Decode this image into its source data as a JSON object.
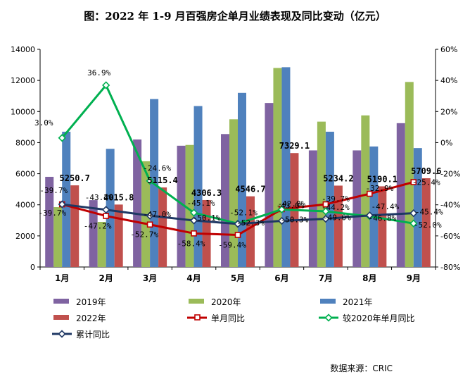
{
  "chart_data": {
    "type": "bar",
    "title": "图：2022 年 1-9 月百强房企单月业绩表现及同比变动（亿元）",
    "categories": [
      "1月",
      "2月",
      "3月",
      "4月",
      "5月",
      "6月",
      "7月",
      "8月",
      "9月"
    ],
    "ylim": [
      0,
      14000
    ],
    "y_ticks": [
      "0",
      "2000",
      "4000",
      "6000",
      "8000",
      "10000",
      "12000",
      "14000"
    ],
    "y2lim": [
      -80,
      60
    ],
    "y2_ticks": [
      "-80%",
      "-60%",
      "-40%",
      "-20%",
      "0%",
      "20%",
      "40%",
      "60%"
    ],
    "bar_series": [
      {
        "name": "2019年",
        "color": "#7f63a1",
        "values": [
          5800,
          4300,
          8200,
          7800,
          8550,
          10550,
          7500,
          7500,
          9250
        ]
      },
      {
        "name": "2020年",
        "color": "#9bbb59",
        "values": [
          3850,
          2900,
          6800,
          7850,
          9500,
          12800,
          9350,
          9750,
          11900
        ]
      },
      {
        "name": "2021年",
        "color": "#4f81bd",
        "values": [
          8700,
          7600,
          10800,
          10350,
          11200,
          12850,
          8700,
          7750,
          7650
        ]
      },
      {
        "name": "2022年",
        "color": "#c0504d",
        "values": [
          5250.7,
          4015.8,
          5115.4,
          4306.3,
          4546.7,
          7329.1,
          5234.2,
          5190.1,
          5709.6
        ],
        "labels": [
          "5250.7",
          "4015.8",
          "5115.4",
          "4306.3",
          "4546.7",
          "7329.1",
          "5234.2",
          "5190.1",
          "5709.6"
        ]
      }
    ],
    "line_series": [
      {
        "name": "单月同比",
        "color": "#c00000",
        "values": [
          -39.7,
          -47.2,
          -52.7,
          -58.4,
          -59.4,
          -42.8,
          -39.7,
          -32.9,
          -25.4
        ],
        "labels": [
          "-39.7%",
          "-47.2%",
          "-52.7%",
          "-58.4%",
          "-59.4%",
          "-42.8%",
          "-39.7%",
          "-32.9%",
          "-25.4%"
        ]
      },
      {
        "name": "较2020年单月同比",
        "color": "#00b050",
        "values": [
          3.0,
          36.9,
          -24.6,
          -45.1,
          -52.1,
          -43.0,
          -44.2,
          -47.4,
          -52.0
        ],
        "labels": [
          "3.0%",
          "36.9%",
          "-24.6%",
          "-45.1%",
          "-52.1%",
          "-43.0%",
          "-44.2%",
          "-47.4%",
          "-52.0%"
        ]
      },
      {
        "name": "累计同比",
        "color": "#1f3864",
        "values": [
          -39.7,
          -43.2,
          -47.0,
          -50.1,
          -52.3,
          -50.3,
          -49.0,
          -46.8,
          -45.4
        ],
        "labels": [
          "-39.7%",
          "-43.2%",
          "-47.0%",
          "-50.1%",
          "-52.3%",
          "-50.3%",
          "-49.0%",
          "-46.8%",
          "-45.4%"
        ]
      }
    ],
    "legend_placement": "bottom",
    "grid": false
  },
  "source": "数据来源：CRIC"
}
